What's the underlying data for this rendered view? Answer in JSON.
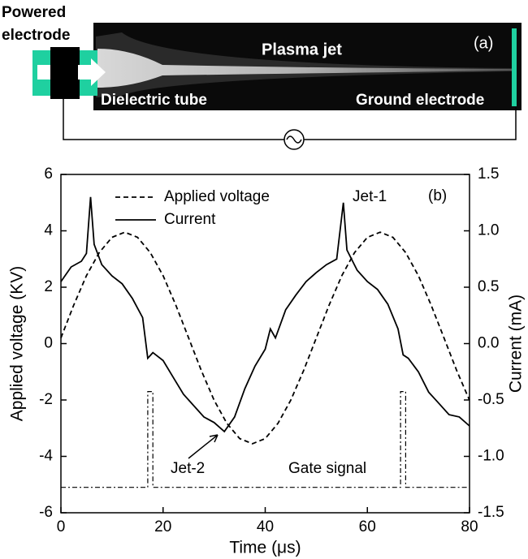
{
  "panel_a": {
    "powered_electrode": [
      "Powered",
      "electrode"
    ],
    "plasma_jet": "Plasma jet",
    "label": "(a)",
    "dielectric_tube": "Dielectric tube",
    "ground_electrode": "Ground electrode"
  },
  "chart_data": {
    "type": "line",
    "panel_label": "(b)",
    "x_label": "Time (μs)",
    "y_label": "Applied voltage (KV)",
    "y2_label": "Current (mA)",
    "xlim": [
      0,
      80
    ],
    "xticks": [
      0,
      20,
      40,
      60,
      80
    ],
    "ylim": [
      -6,
      6
    ],
    "yticks": [
      -6,
      -4,
      -2,
      0,
      2,
      4,
      6
    ],
    "y2lim": [
      -1.5,
      1.5
    ],
    "y2ticks": [
      -1.5,
      {
        "value": -1,
        "label": "-1.0"
      },
      -0.5,
      {
        "value": 0,
        "label": "0.0"
      },
      0.5,
      {
        "value": 1,
        "label": "1.0"
      },
      1.5
    ],
    "annotations": [
      "Jet-1",
      "Jet-2",
      "Gate signal"
    ],
    "series": [
      {
        "name": "Applied voltage",
        "color": "#000000",
        "style": "dashed",
        "in_legend": true,
        "x": [
          0,
          2.5,
          5,
          7.5,
          10,
          12.5,
          15,
          17.5,
          20,
          22.5,
          25,
          27.5,
          30,
          32.5,
          35,
          37.5,
          40,
          42.5,
          45,
          47.5,
          50,
          52.5,
          55,
          57.5,
          60,
          62.5,
          65,
          67.5,
          70,
          72.5,
          75,
          77.5,
          80
        ],
        "values": [
          0.2,
          1.36,
          2.41,
          3.23,
          3.77,
          3.95,
          3.77,
          3.23,
          2.41,
          1.36,
          0.2,
          -0.96,
          -2.01,
          -2.83,
          -3.37,
          -3.55,
          -3.37,
          -2.83,
          -2.01,
          -0.96,
          0.2,
          1.36,
          2.41,
          3.23,
          3.77,
          3.95,
          3.77,
          3.23,
          2.41,
          1.36,
          0.2,
          -0.96,
          -2.01
        ]
      },
      {
        "name": "Current",
        "color": "#000000",
        "style": "solid",
        "in_legend": true,
        "axis": "y2",
        "x": [
          0,
          2,
          4,
          5,
          5.8,
          6.5,
          8,
          10,
          12,
          14,
          16,
          17,
          18,
          20,
          22,
          24,
          26,
          28,
          30,
          32,
          34,
          36,
          38,
          40,
          41,
          42,
          44,
          46,
          48,
          50,
          52,
          54,
          55.3,
          56,
          58,
          60,
          62,
          64,
          66,
          67,
          68,
          70,
          72,
          74,
          76,
          78,
          80
        ],
        "values": [
          0.55,
          0.68,
          0.73,
          0.8,
          1.3,
          0.88,
          0.7,
          0.6,
          0.53,
          0.4,
          0.23,
          -0.13,
          -0.08,
          -0.15,
          -0.3,
          -0.45,
          -0.55,
          -0.65,
          -0.7,
          -0.78,
          -0.65,
          -0.4,
          -0.2,
          -0.05,
          0.13,
          0.05,
          0.3,
          0.43,
          0.55,
          0.63,
          0.7,
          0.75,
          1.25,
          0.83,
          0.65,
          0.55,
          0.48,
          0.35,
          0.13,
          -0.1,
          -0.13,
          -0.25,
          -0.43,
          -0.53,
          -0.63,
          -0.65,
          -0.73
        ]
      },
      {
        "name": "Gate signal",
        "color": "#000000",
        "style": "dashdot",
        "in_legend": false,
        "x": [
          0,
          17,
          17,
          18,
          18,
          66.5,
          66.5,
          67.5,
          67.5,
          80
        ],
        "values": [
          -5.1,
          -5.1,
          -1.7,
          -1.7,
          -5.1,
          -5.1,
          -1.7,
          -1.7,
          -5.1,
          -5.1
        ]
      }
    ]
  }
}
